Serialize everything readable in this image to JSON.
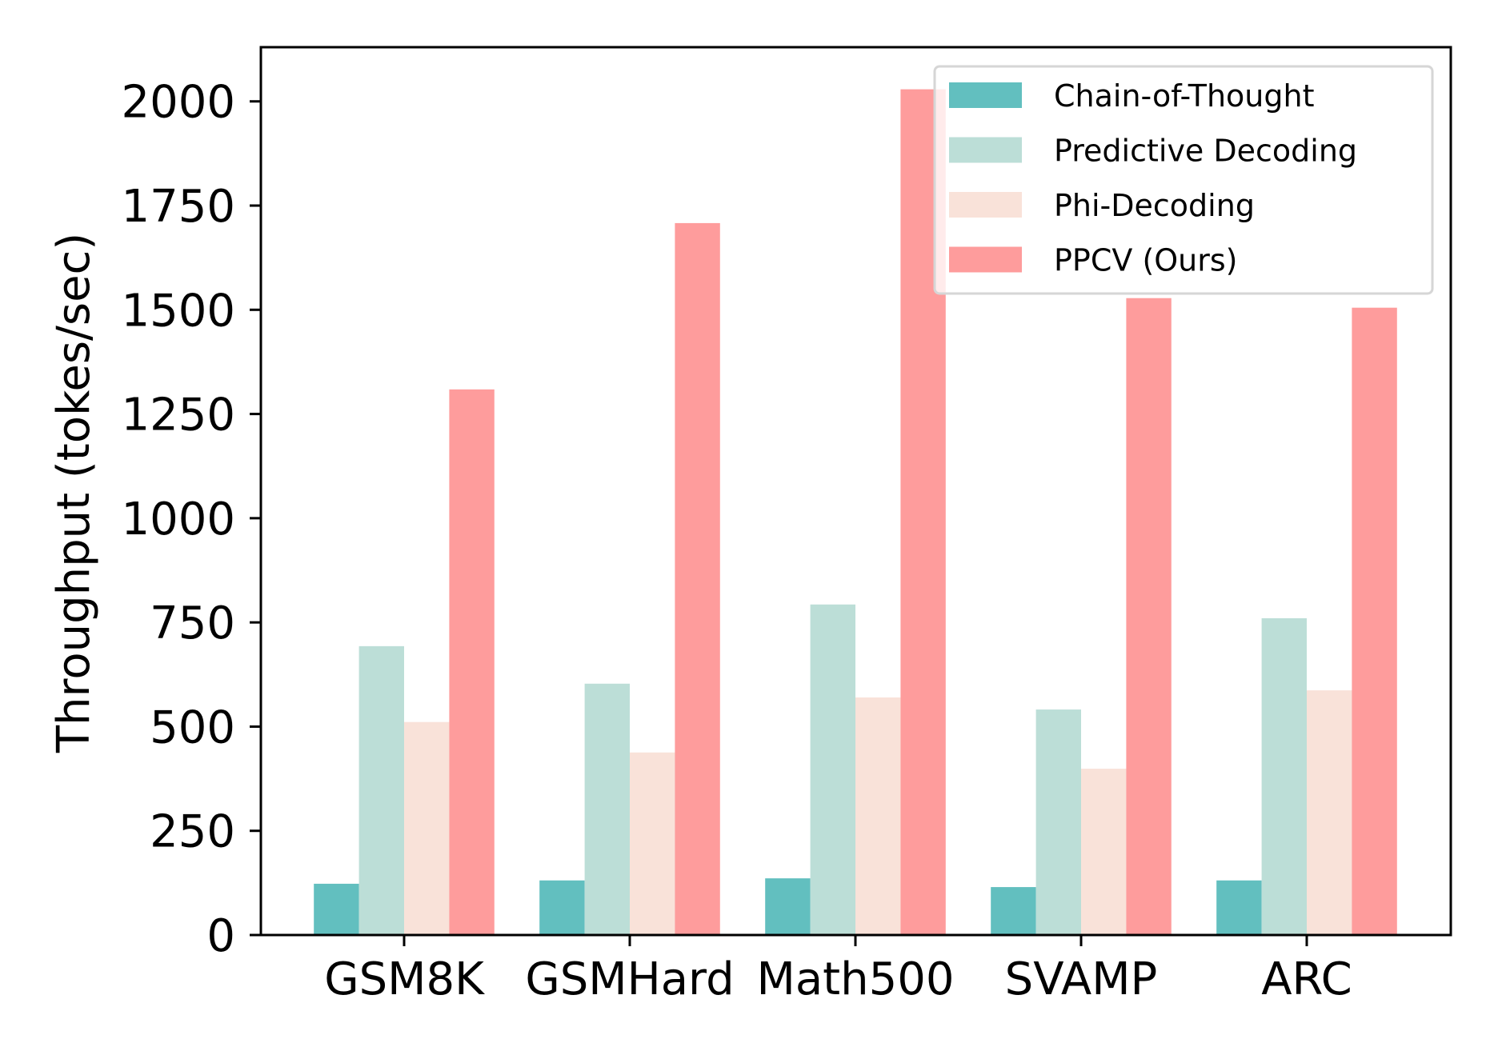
{
  "chart_data": {
    "type": "bar",
    "title": "",
    "xlabel": "",
    "ylabel": "Throughput (tokes/sec)",
    "categories": [
      "GSM8K",
      "GSMHard",
      "Math500",
      "SVAMP",
      "ARC"
    ],
    "ylim": [
      0,
      2130
    ],
    "yticks": [
      0,
      250,
      500,
      750,
      1000,
      1250,
      1500,
      1750,
      2000
    ],
    "ytick_labels": [
      "0",
      "250",
      "500",
      "750",
      "1000",
      "1250",
      "1500",
      "1750",
      "2000"
    ],
    "grid": false,
    "legend_position": "top-right",
    "series": [
      {
        "name": "Chain-of-Thought",
        "color": "#62bfbf",
        "values": [
          123,
          131,
          136,
          115,
          131
        ]
      },
      {
        "name": "Predictive Decoding",
        "color": "#bcded7",
        "values": [
          693,
          603,
          793,
          541,
          760
        ]
      },
      {
        "name": "Phi-Decoding",
        "color": "#f9e2d9",
        "values": [
          511,
          438,
          570,
          399,
          587
        ]
      },
      {
        "name": "PPCV (Ours)",
        "color": "#fe9c9c",
        "values": [
          1309,
          1708,
          2029,
          1528,
          1505
        ]
      }
    ]
  }
}
